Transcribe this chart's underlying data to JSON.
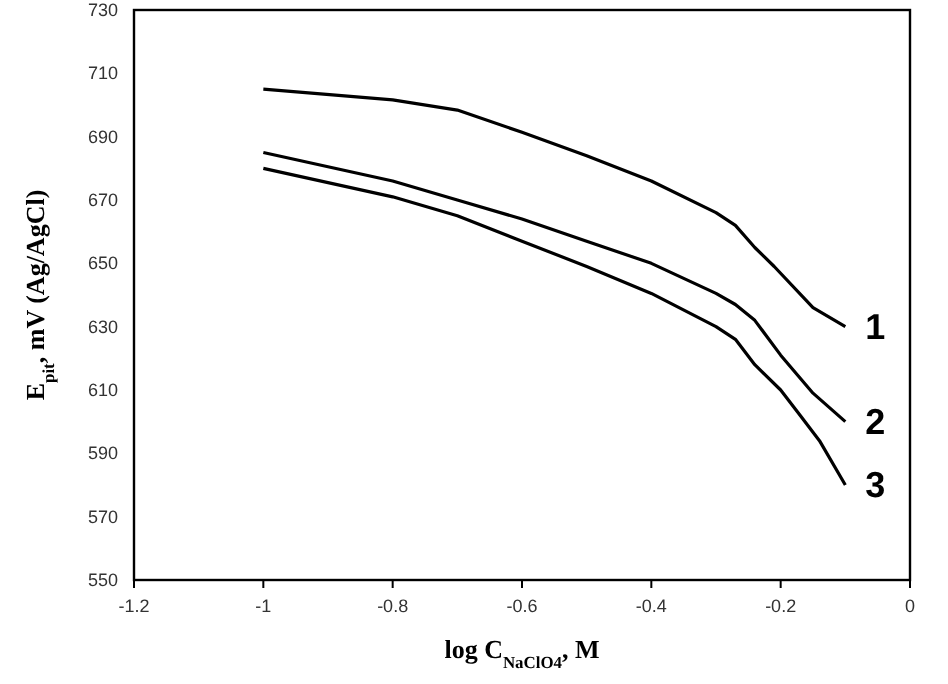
{
  "chart_data": {
    "type": "line",
    "xlabel": "log C$_{NaClO4}$, M",
    "ylabel": "E$_{pit}$, mV (Ag/AgCl)",
    "xlim": [
      -1.2,
      0
    ],
    "xticks": [
      -1.2,
      -1,
      -0.8,
      -0.6,
      -0.4,
      -0.2,
      0
    ],
    "ylim": [
      550,
      730
    ],
    "yticks": [
      550,
      570,
      590,
      610,
      630,
      650,
      670,
      690,
      710,
      730
    ],
    "grid": false,
    "legend": false,
    "marker": "none",
    "line_style": "solid",
    "series": [
      {
        "name": "1",
        "color": "#000000",
        "x": [
          -1,
          -0.8,
          -0.7,
          -0.6,
          -0.5,
          -0.4,
          -0.3,
          -0.27,
          -0.24,
          -0.21,
          -0.15,
          -0.1
        ],
        "values": [
          705,
          701.6,
          698.4,
          691.4,
          684,
          676,
          666,
          662,
          655,
          649,
          636,
          630
        ]
      },
      {
        "name": "2",
        "color": "#000000",
        "x": [
          -1,
          -0.8,
          -0.7,
          -0.6,
          -0.5,
          -0.4,
          -0.3,
          -0.27,
          -0.24,
          -0.2,
          -0.15,
          -0.1
        ],
        "values": [
          685,
          676,
          670,
          664,
          657,
          650,
          640.5,
          637,
          632,
          621,
          609,
          600
        ]
      },
      {
        "name": "3",
        "color": "#000000",
        "x": [
          -1,
          -0.8,
          -0.7,
          -0.6,
          -0.5,
          -0.4,
          -0.3,
          -0.27,
          -0.24,
          -0.2,
          -0.17,
          -0.14,
          -0.1
        ],
        "values": [
          680,
          671,
          665,
          657,
          649,
          640.5,
          630,
          626,
          618,
          610,
          602,
          594,
          580
        ]
      }
    ]
  }
}
